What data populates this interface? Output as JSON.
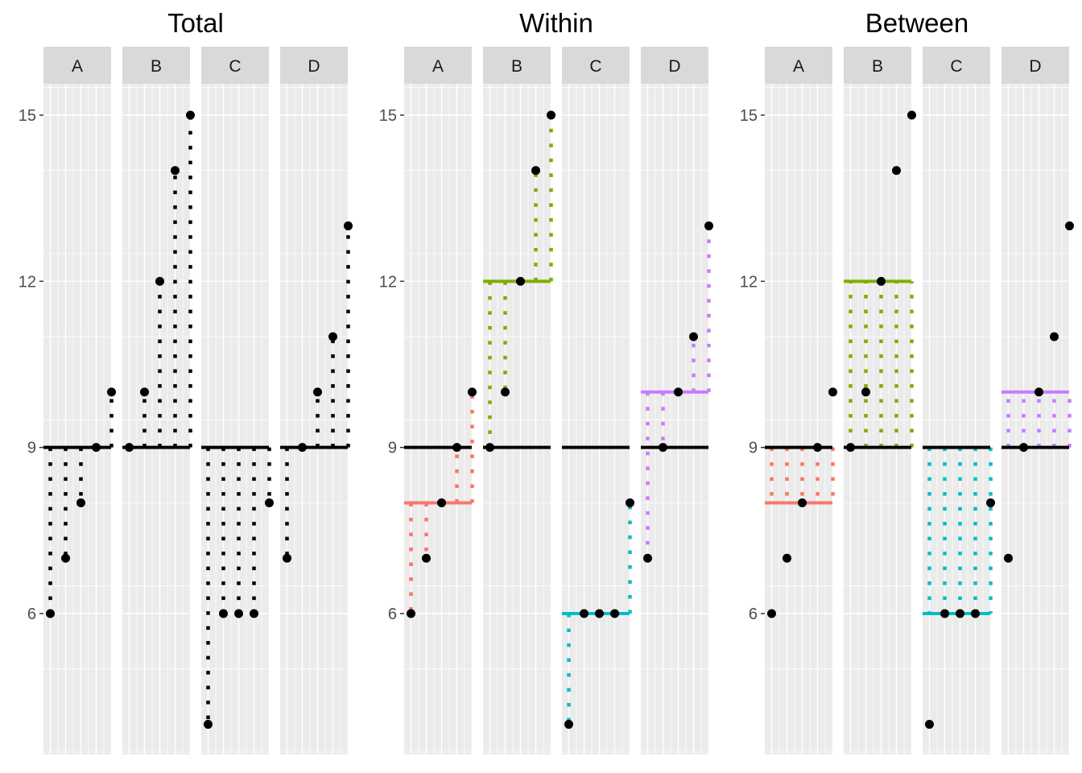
{
  "chart_data": {
    "type": "scatter",
    "panels": [
      {
        "title": "Total",
        "mode": "total"
      },
      {
        "title": "Within",
        "mode": "within"
      },
      {
        "title": "Between",
        "mode": "between"
      }
    ],
    "facets": [
      "A",
      "B",
      "C",
      "D"
    ],
    "groups": [
      {
        "name": "A",
        "values": [
          6,
          7,
          8,
          9,
          10
        ],
        "mean": 8,
        "color": "#F8766D"
      },
      {
        "name": "B",
        "values": [
          9,
          10,
          12,
          14,
          15
        ],
        "mean": 12,
        "color": "#7CAE00"
      },
      {
        "name": "C",
        "values": [
          4,
          6,
          6,
          6,
          8
        ],
        "mean": 6,
        "color": "#00BFC4"
      },
      {
        "name": "D",
        "values": [
          7,
          9,
          10,
          11,
          13
        ],
        "mean": 10,
        "color": "#C77CFF"
      }
    ],
    "grand_mean": 9,
    "y_ticks": [
      "6",
      "9",
      "12",
      "15"
    ],
    "ylim": [
      3.5,
      16.2
    ],
    "grid": true,
    "legend": "none",
    "colors": {
      "panel_bg": "#EBEBEB",
      "grid": "#FFFFFF",
      "strip_bg": "#D9D9D9",
      "point": "#000000",
      "grand_mean_line": "#000000"
    }
  }
}
